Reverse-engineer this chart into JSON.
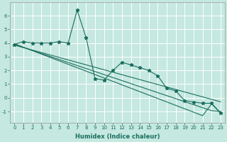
{
  "xlabel": "Humidex (Indice chaleur)",
  "background_color": "#c5e8e0",
  "grid_color": "#ffffff",
  "line_color": "#1a6e60",
  "x_data": [
    0,
    1,
    2,
    3,
    4,
    5,
    6,
    7,
    8,
    9,
    10,
    11,
    12,
    13,
    14,
    15,
    16,
    17,
    18,
    19,
    20,
    21,
    22,
    23
  ],
  "main_line": [
    3.9,
    4.1,
    4.0,
    4.0,
    4.0,
    4.1,
    4.0,
    6.4,
    4.4,
    1.4,
    1.3,
    2.0,
    2.6,
    2.4,
    2.2,
    2.0,
    1.6,
    0.7,
    0.5,
    -0.2,
    -0.3,
    -0.4,
    -0.4,
    -1.1
  ],
  "trend_line1": [
    3.85,
    3.67,
    3.49,
    3.31,
    3.13,
    2.95,
    2.77,
    2.59,
    2.41,
    2.23,
    2.05,
    1.87,
    1.69,
    1.51,
    1.33,
    1.15,
    0.97,
    0.79,
    0.61,
    0.43,
    0.25,
    0.07,
    -0.11,
    -0.29
  ],
  "trend_line2": [
    3.9,
    3.68,
    3.46,
    3.24,
    3.02,
    2.8,
    2.58,
    2.36,
    2.14,
    1.92,
    1.7,
    1.48,
    1.26,
    1.04,
    0.82,
    0.6,
    0.38,
    0.16,
    -0.06,
    -0.28,
    -0.5,
    -0.72,
    -0.94,
    -1.0
  ],
  "trend_line3": [
    3.95,
    3.7,
    3.45,
    3.2,
    2.95,
    2.7,
    2.45,
    2.2,
    1.95,
    1.7,
    1.45,
    1.2,
    0.95,
    0.7,
    0.45,
    0.2,
    -0.05,
    -0.3,
    -0.55,
    -0.8,
    -1.05,
    -1.3,
    -0.45,
    -1.1
  ],
  "ylim": [
    -1.8,
    7.0
  ],
  "xlim": [
    -0.5,
    23.5
  ],
  "yticks": [
    -1,
    0,
    1,
    2,
    3,
    4,
    5,
    6
  ],
  "xticks": [
    0,
    1,
    2,
    3,
    4,
    5,
    6,
    7,
    8,
    9,
    10,
    11,
    12,
    13,
    14,
    15,
    16,
    17,
    18,
    19,
    20,
    21,
    22,
    23
  ],
  "marker": "*",
  "marker_size": 3.5,
  "linewidth": 0.8,
  "tick_fontsize": 5.0,
  "xlabel_fontsize": 6.0
}
